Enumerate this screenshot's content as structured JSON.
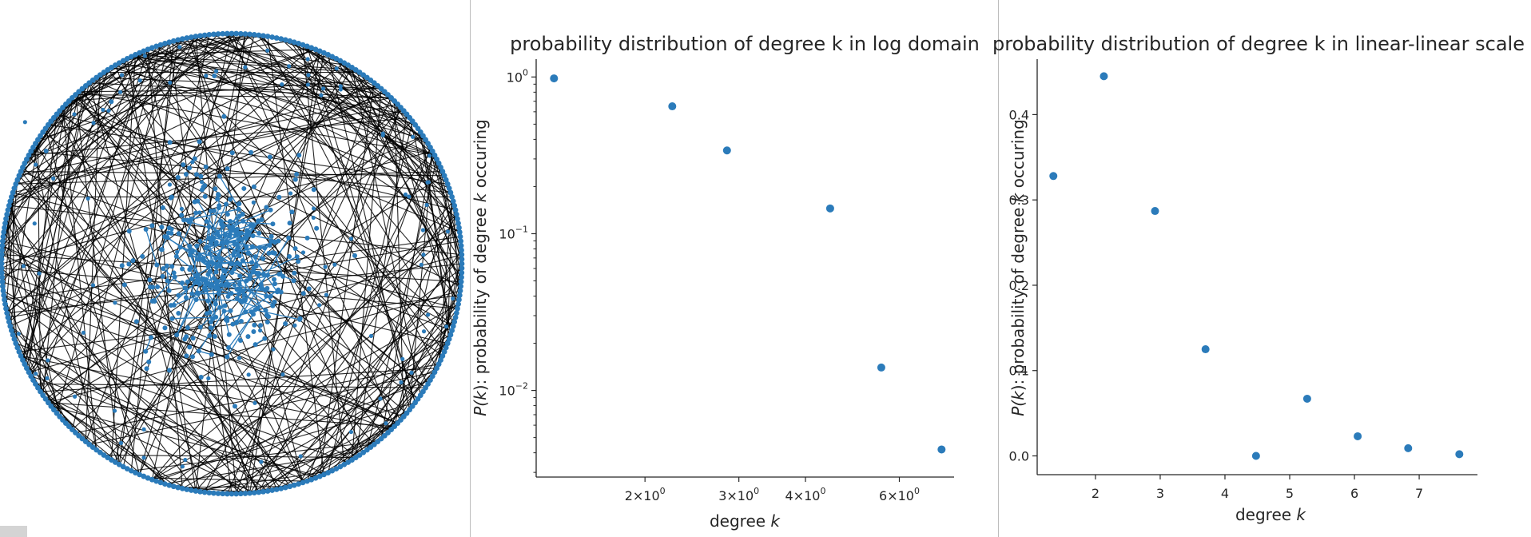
{
  "colors": {
    "point": "#2b7bba",
    "edge": "#000000",
    "axis": "#262626",
    "separator": "#bdbdbd"
  },
  "network": {
    "title": "",
    "edge_color": "black",
    "node_color": "#2b7bba"
  },
  "chart_data": [
    {
      "type": "scatter",
      "title": "probability distribution of degree k in log domain",
      "xlabel_prefix": "degree ",
      "xlabel_var": "k",
      "ylabel_parts": [
        "P(",
        "k",
        "): probability of degree ",
        "k",
        " occuring"
      ],
      "log_x": true,
      "log_y": true,
      "xlim": [
        1.25,
        7.6
      ],
      "ylim": [
        0.0028,
        1.3
      ],
      "xticks": [
        {
          "value": 2,
          "base": "2×10",
          "exp": "0"
        },
        {
          "value": 3,
          "base": "3×10",
          "exp": "0"
        },
        {
          "value": 4,
          "base": "4×10",
          "exp": "0"
        },
        {
          "value": 6,
          "base": "6×10",
          "exp": "0"
        }
      ],
      "yticks": [
        {
          "value": 1,
          "base": "10",
          "exp": "0"
        },
        {
          "value": 0.1,
          "base": "10",
          "exp": "−1"
        },
        {
          "value": 0.01,
          "base": "10",
          "exp": "−2"
        }
      ],
      "points": [
        {
          "x": 1.35,
          "y": 0.98
        },
        {
          "x": 2.25,
          "y": 0.65
        },
        {
          "x": 2.85,
          "y": 0.34
        },
        {
          "x": 4.45,
          "y": 0.145
        },
        {
          "x": 5.55,
          "y": 0.014
        },
        {
          "x": 7.2,
          "y": 0.0042
        }
      ],
      "grid": false
    },
    {
      "type": "scatter",
      "title": "probability distribution of degree k in linear-linear scale",
      "xlabel_prefix": "degree ",
      "xlabel_var": "k",
      "ylabel_parts": [
        "P(",
        "k",
        "): probability of degree ",
        "k",
        " occuring"
      ],
      "xlim": [
        1.1,
        7.9
      ],
      "ylim": [
        -0.022,
        0.465
      ],
      "xticks": [
        {
          "value": 2,
          "label": "2"
        },
        {
          "value": 3,
          "label": "3"
        },
        {
          "value": 4,
          "label": "4"
        },
        {
          "value": 5,
          "label": "5"
        },
        {
          "value": 6,
          "label": "6"
        },
        {
          "value": 7,
          "label": "7"
        }
      ],
      "yticks": [
        {
          "value": 0.0,
          "label": "0.0"
        },
        {
          "value": 0.1,
          "label": "0.1"
        },
        {
          "value": 0.2,
          "label": "0.2"
        },
        {
          "value": 0.3,
          "label": "0.3"
        },
        {
          "value": 0.4,
          "label": "0.4"
        }
      ],
      "points": [
        {
          "x": 1.35,
          "y": 0.328
        },
        {
          "x": 2.13,
          "y": 0.445
        },
        {
          "x": 2.92,
          "y": 0.287
        },
        {
          "x": 3.7,
          "y": 0.125
        },
        {
          "x": 4.48,
          "y": 0.0
        },
        {
          "x": 5.27,
          "y": 0.067
        },
        {
          "x": 6.05,
          "y": 0.023
        },
        {
          "x": 6.83,
          "y": 0.009
        },
        {
          "x": 7.62,
          "y": 0.002
        }
      ],
      "grid": false
    }
  ]
}
